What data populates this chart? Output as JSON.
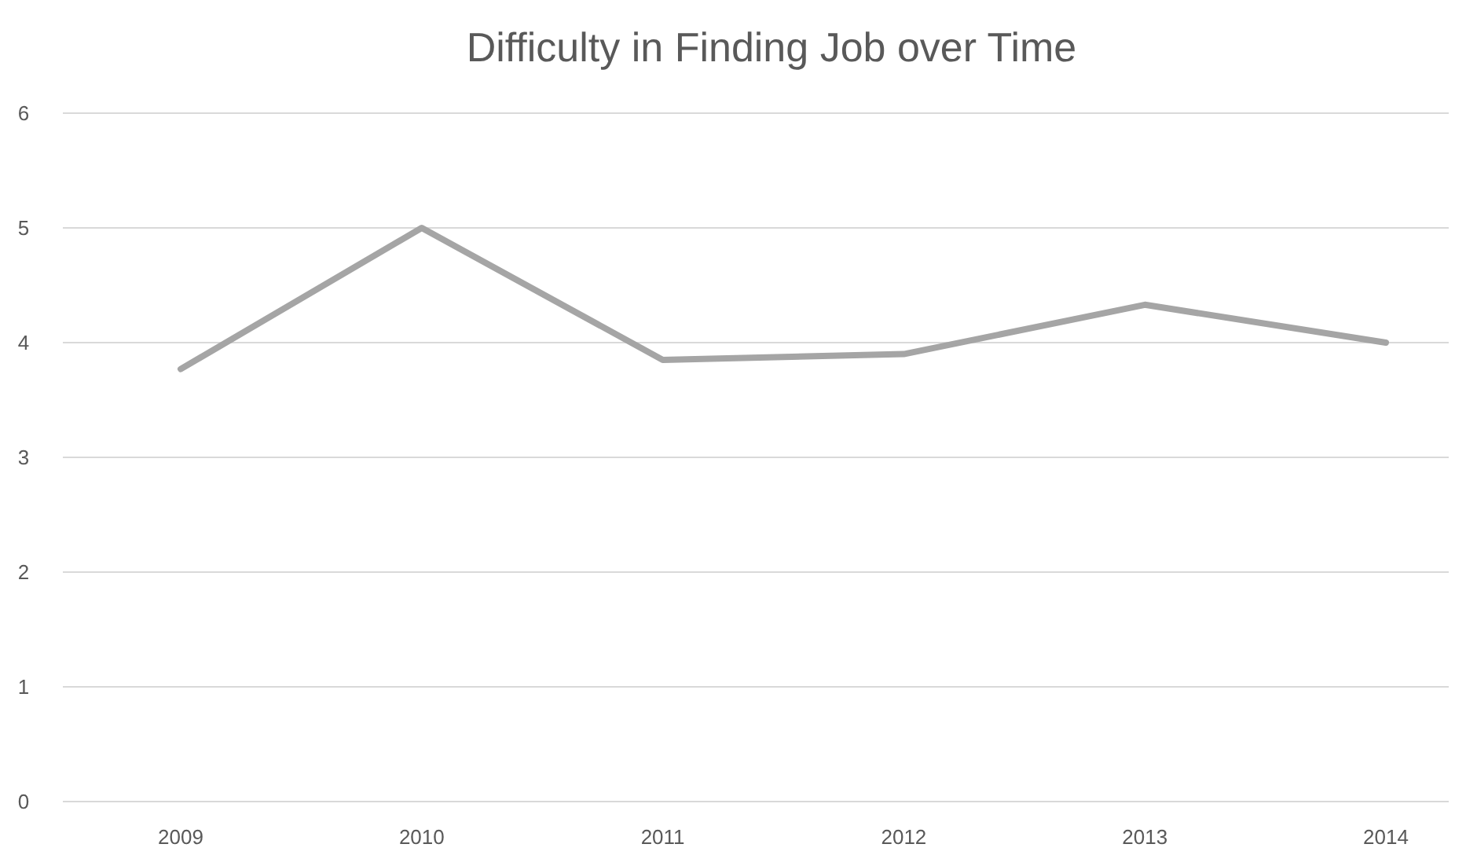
{
  "chart_data": {
    "type": "line",
    "title": "Difficulty in Finding Job over Time",
    "categories": [
      "2009",
      "2010",
      "2011",
      "2012",
      "2013",
      "2014"
    ],
    "series": [
      {
        "color": "#a5a5a5",
        "values": [
          3.77,
          5,
          3.85,
          3.9,
          4.33,
          4
        ]
      }
    ],
    "ylim": [
      0,
      6
    ],
    "yticks": [
      0,
      1,
      2,
      3,
      4,
      5,
      6
    ],
    "grid": "y",
    "marker": "none",
    "line_style": "solid"
  }
}
